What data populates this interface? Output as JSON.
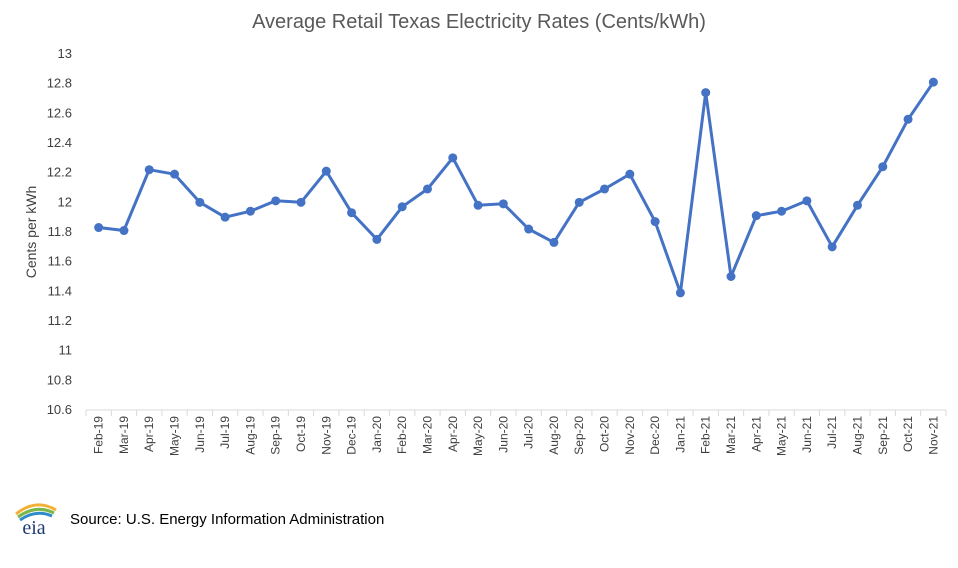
{
  "chart_data": {
    "type": "line",
    "title": "Average Retail Texas Electricity Rates (Cents/kWh)",
    "xlabel": "",
    "ylabel": "Cents per kWh",
    "ylim": [
      10.6,
      13
    ],
    "yticks": [
      "13",
      "12.8",
      "12.6",
      "12.4",
      "12.2",
      "12",
      "11.8",
      "11.6",
      "11.4",
      "11.2",
      "11",
      "10.8",
      "10.6"
    ],
    "grid": false,
    "legend": "none",
    "color": "#4472C4",
    "categories": [
      "Feb-19",
      "Mar-19",
      "Apr-19",
      "May-19",
      "Jun-19",
      "Jul-19",
      "Aug-19",
      "Sep-19",
      "Oct-19",
      "Nov-19",
      "Dec-19",
      "Jan-20",
      "Feb-20",
      "Mar-20",
      "Apr-20",
      "May-20",
      "Jun-20",
      "Jul-20",
      "Aug-20",
      "Sep-20",
      "Oct-20",
      "Nov-20",
      "Dec-20",
      "Jan-21",
      "Feb-21",
      "Mar-21",
      "Apr-21",
      "May-21",
      "Jun-21",
      "Jul-21",
      "Aug-21",
      "Sep-21",
      "Oct-21",
      "Nov-21"
    ],
    "values": [
      11.83,
      11.81,
      12.22,
      12.19,
      12.0,
      11.9,
      11.94,
      12.01,
      12.0,
      12.21,
      11.93,
      11.75,
      11.97,
      12.09,
      12.3,
      11.98,
      11.99,
      11.82,
      11.73,
      12.0,
      12.09,
      12.19,
      11.87,
      11.39,
      12.74,
      11.5,
      11.91,
      11.94,
      12.01,
      11.7,
      11.98,
      12.24,
      12.56,
      12.81
    ]
  },
  "footer": {
    "source": "Source: U.S. Energy Information Administration",
    "logo_text": "eia"
  }
}
